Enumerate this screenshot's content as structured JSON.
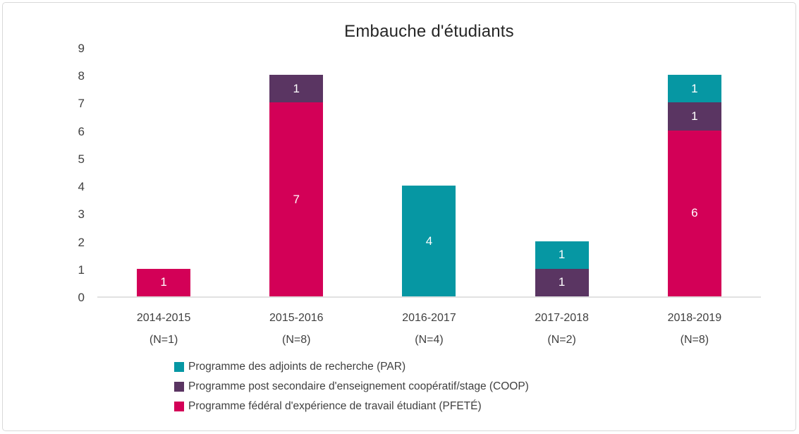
{
  "frame": {
    "background": "#ffffff",
    "border_color": "#d9d9d9"
  },
  "chart_data": {
    "type": "bar",
    "stacked": true,
    "title": "Embauche d'étudiants",
    "categories": [
      "2014-2015",
      "2015-2016",
      "2016-2017",
      "2017-2018",
      "2018-2019"
    ],
    "category_sublabels": [
      "(N=1)",
      "(N=8)",
      "(N=4)",
      "(N=2)",
      "(N=8)"
    ],
    "series": [
      {
        "name": "Programme fédéral d'expérience de travail étudiant (PFETÉ)",
        "color": "#d30057",
        "values": [
          1,
          7,
          0,
          0,
          6
        ]
      },
      {
        "name": "Programme post secondaire d'enseignement coopératif/stage (COOP)",
        "color": "#5a3562",
        "values": [
          0,
          1,
          0,
          1,
          1
        ]
      },
      {
        "name": "Programme des adjoints de recherche (PAR)",
        "color": "#0697a3",
        "values": [
          0,
          0,
          4,
          1,
          1
        ]
      }
    ],
    "legend": [
      {
        "label": "Programme des adjoints de recherche (PAR)",
        "color": "#0697a3"
      },
      {
        "label": "Programme post secondaire d'enseignement coopératif/stage (COOP)",
        "color": "#5a3562"
      },
      {
        "label": "Programme fédéral d'expérience de travail étudiant (PFETÉ)",
        "color": "#d30057"
      }
    ],
    "ylim": [
      0,
      9
    ],
    "yticks": [
      0,
      1,
      2,
      3,
      4,
      5,
      6,
      7,
      8,
      9
    ],
    "grid": false,
    "legend_position": "bottom-left",
    "data_labels": true,
    "data_label_color": "#ffffff",
    "axis_line_color": "#e2e2e2",
    "text_color": "#404040"
  }
}
